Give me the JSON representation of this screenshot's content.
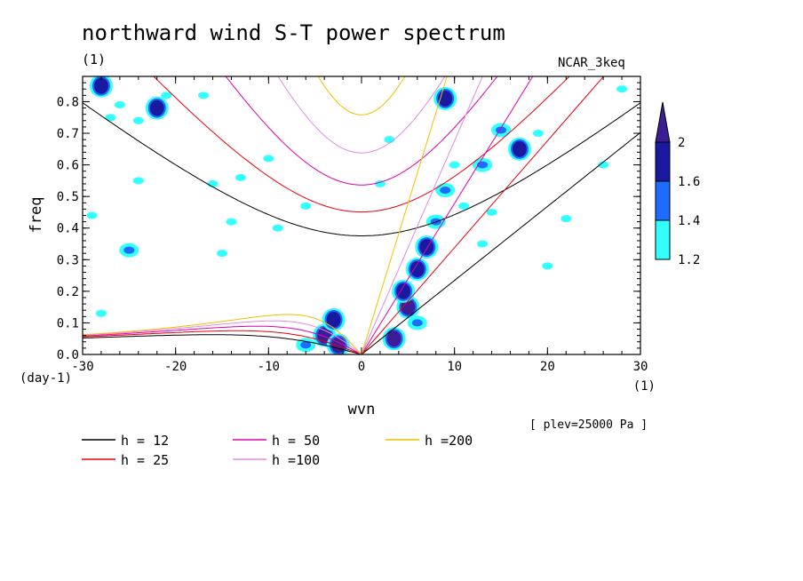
{
  "title": "northward wind S-T power spectrum",
  "subtitle": "(1)",
  "run_label": "NCAR_3keq",
  "footnote": "[ plev=25000 Pa ]",
  "chart_data": {
    "type": "heatmap",
    "xlabel": "wvn",
    "ylabel": "freq",
    "x_unit_label": "(1)",
    "y_unit_label": "(day-1)",
    "xlim": [
      -30,
      30
    ],
    "ylim": [
      0,
      0.88
    ],
    "x_ticks": [
      -30,
      -20,
      -10,
      0,
      10,
      20,
      30
    ],
    "x_tick_labels": [
      "-30",
      "-20",
      "-10",
      "0",
      "10",
      "20",
      "30"
    ],
    "y_ticks": [
      0,
      0.1,
      0.2,
      0.3,
      0.4,
      0.5,
      0.6,
      0.7,
      0.8
    ],
    "y_tick_labels": [
      "0.0",
      "0.1",
      "0.2",
      "0.3",
      "0.4",
      "0.5",
      "0.6",
      "0.7",
      "0.8"
    ],
    "colorbar": {
      "levels": [
        1.2,
        1.4,
        1.6,
        2
      ],
      "labels": [
        "1.2",
        "1.4",
        "1.6",
        "2"
      ],
      "colors": [
        "#33ffff",
        "#1e6bff",
        "#1a1aa0",
        "#3d1d96"
      ]
    },
    "dispersion_curves": [
      {
        "name": "h = 12",
        "h": 12,
        "color": "#000000"
      },
      {
        "name": "h = 25",
        "h": 25,
        "color": "#e8000b"
      },
      {
        "name": "h = 50",
        "h": 50,
        "color": "#dd00b0"
      },
      {
        "name": "h =100",
        "h": 100,
        "color": "#e08be0"
      },
      {
        "name": "h =200",
        "h": 200,
        "color": "#f0c000"
      }
    ],
    "power_blobs": [
      {
        "x": -4,
        "y": 0.06,
        "level": 2
      },
      {
        "x": -3,
        "y": 0.11,
        "level": 1.6
      },
      {
        "x": -2.5,
        "y": 0.03,
        "level": 2
      },
      {
        "x": -6,
        "y": 0.03,
        "level": 1.4
      },
      {
        "x": 3.5,
        "y": 0.05,
        "level": 2
      },
      {
        "x": 5,
        "y": 0.15,
        "level": 2
      },
      {
        "x": 4.5,
        "y": 0.2,
        "level": 1.6
      },
      {
        "x": 6,
        "y": 0.27,
        "level": 1.6
      },
      {
        "x": 7,
        "y": 0.34,
        "level": 1.6
      },
      {
        "x": 6,
        "y": 0.1,
        "level": 1.4
      },
      {
        "x": 8,
        "y": 0.42,
        "level": 1.4
      },
      {
        "x": 9,
        "y": 0.52,
        "level": 1.4
      },
      {
        "x": 10,
        "y": 0.6,
        "level": 1.2
      },
      {
        "x": 11,
        "y": 0.47,
        "level": 1.2
      },
      {
        "x": 13,
        "y": 0.6,
        "level": 1.4
      },
      {
        "x": 9,
        "y": 0.81,
        "level": 1.6
      },
      {
        "x": 15,
        "y": 0.71,
        "level": 1.4
      },
      {
        "x": 17,
        "y": 0.65,
        "level": 1.6
      },
      {
        "x": 19,
        "y": 0.7,
        "level": 1.2
      },
      {
        "x": -28,
        "y": 0.85,
        "level": 1.6
      },
      {
        "x": -27,
        "y": 0.75,
        "level": 1.2
      },
      {
        "x": -26,
        "y": 0.79,
        "level": 1.2
      },
      {
        "x": -24,
        "y": 0.74,
        "level": 1.2
      },
      {
        "x": -22,
        "y": 0.78,
        "level": 1.6
      },
      {
        "x": -21,
        "y": 0.82,
        "level": 1.2
      },
      {
        "x": -24,
        "y": 0.55,
        "level": 1.2
      },
      {
        "x": -16,
        "y": 0.54,
        "level": 1.2
      },
      {
        "x": -13,
        "y": 0.56,
        "level": 1.2
      },
      {
        "x": -17,
        "y": 0.82,
        "level": 1.2
      },
      {
        "x": -25,
        "y": 0.33,
        "level": 1.4
      },
      {
        "x": -29,
        "y": 0.44,
        "level": 1.2
      },
      {
        "x": -14,
        "y": 0.42,
        "level": 1.2
      },
      {
        "x": -9,
        "y": 0.4,
        "level": 1.2
      },
      {
        "x": -6,
        "y": 0.47,
        "level": 1.2
      },
      {
        "x": 14,
        "y": 0.45,
        "level": 1.2
      },
      {
        "x": 22,
        "y": 0.43,
        "level": 1.2
      },
      {
        "x": 26,
        "y": 0.6,
        "level": 1.2
      },
      {
        "x": 28,
        "y": 0.84,
        "level": 1.2
      },
      {
        "x": 3,
        "y": 0.68,
        "level": 1.2
      },
      {
        "x": 2,
        "y": 0.54,
        "level": 1.2
      },
      {
        "x": -28,
        "y": 0.13,
        "level": 1.2
      },
      {
        "x": -15,
        "y": 0.32,
        "level": 1.2
      },
      {
        "x": -10,
        "y": 0.62,
        "level": 1.2
      },
      {
        "x": 13,
        "y": 0.35,
        "level": 1.2
      },
      {
        "x": 20,
        "y": 0.28,
        "level": 1.2
      }
    ]
  }
}
